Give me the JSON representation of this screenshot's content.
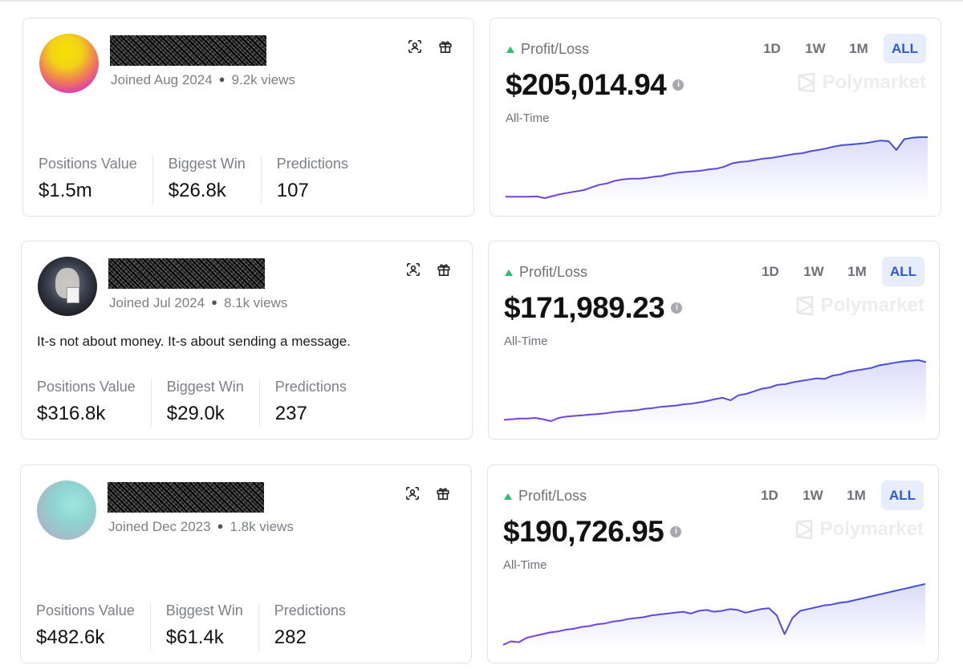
{
  "profiles": [
    {
      "joined": "Joined Aug 2024",
      "views": "9.2k views",
      "bio": "",
      "stats": [
        {
          "label": "Positions Value",
          "value": "$1.5m"
        },
        {
          "label": "Biggest Win",
          "value": "$26.8k"
        },
        {
          "label": "Predictions",
          "value": "107"
        }
      ]
    },
    {
      "joined": "Joined Jul 2024",
      "views": "8.1k views",
      "bio": "It-s not about money. It-s about sending a message.",
      "stats": [
        {
          "label": "Positions Value",
          "value": "$316.8k"
        },
        {
          "label": "Biggest Win",
          "value": "$29.0k"
        },
        {
          "label": "Predictions",
          "value": "237"
        }
      ]
    },
    {
      "joined": "Joined Dec 2023",
      "views": "1.8k views",
      "bio": "",
      "stats": [
        {
          "label": "Positions Value",
          "value": "$482.6k"
        },
        {
          "label": "Biggest Win",
          "value": "$61.4k"
        },
        {
          "label": "Predictions",
          "value": "282"
        }
      ]
    }
  ],
  "pnl": [
    {
      "label": "Profit/Loss",
      "value": "$205,014.94",
      "range": "All-Time"
    },
    {
      "label": "Profit/Loss",
      "value": "$171,989.23",
      "range": "All-Time"
    },
    {
      "label": "Profit/Loss",
      "value": "$190,726.95",
      "range": "All-Time"
    }
  ],
  "tabs": [
    "1D",
    "1W",
    "1M",
    "ALL"
  ],
  "active_tab": "ALL",
  "brand": "Polymarket",
  "colors": {
    "line_start": "#7b3fe4",
    "line_end": "#3f4fd8",
    "positive": "#2ebd6b",
    "active_tab_bg": "#e8edfb"
  },
  "chart_data": [
    {
      "type": "area",
      "series": [
        {
          "values": [
            0,
            0,
            0,
            0,
            0.5,
            -2,
            1,
            4,
            6,
            8,
            10,
            14,
            18,
            20,
            24,
            26,
            27,
            27,
            28,
            30,
            31,
            34,
            36,
            37,
            38,
            39,
            41,
            42,
            45,
            50,
            52,
            53,
            55,
            57,
            58,
            60,
            62,
            64,
            65,
            68,
            70,
            72,
            75,
            77,
            78,
            79,
            80,
            82,
            84,
            83,
            70,
            86,
            88,
            89,
            89
          ]
        }
      ]
    },
    {
      "type": "area",
      "series": [
        {
          "values": [
            0,
            1,
            2,
            2,
            3,
            1,
            -2,
            3,
            5,
            6,
            7,
            8,
            9,
            10,
            12,
            13,
            14,
            15,
            17,
            18,
            20,
            21,
            22,
            24,
            25,
            27,
            29,
            32,
            34,
            30,
            38,
            40,
            44,
            48,
            50,
            54,
            55,
            58,
            60,
            62,
            64,
            63,
            68,
            70,
            74,
            76,
            78,
            80,
            84,
            86,
            88,
            90,
            91,
            92,
            89
          ]
        }
      ]
    },
    {
      "type": "area",
      "series": [
        {
          "values": [
            0,
            4,
            3,
            8,
            10,
            12,
            14,
            15,
            17,
            18,
            20,
            21,
            23,
            24,
            26,
            27,
            29,
            30,
            31,
            33,
            34,
            35,
            36,
            37,
            35,
            38,
            39,
            37,
            38,
            40,
            39,
            36,
            38,
            40,
            41,
            33,
            12,
            30,
            38,
            40,
            42,
            44,
            45,
            47,
            48,
            50,
            52,
            54,
            56,
            58,
            60,
            62,
            64,
            66,
            68
          ]
        }
      ]
    }
  ]
}
